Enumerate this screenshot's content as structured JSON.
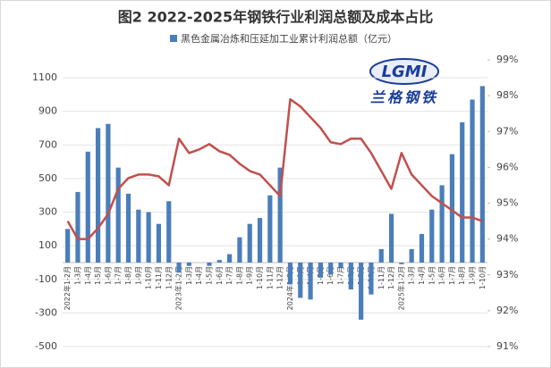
{
  "chart_data": {
    "type": "bar_line",
    "title": "图2 2022-2025年钢铁行业利润总额及成本占比",
    "logo": {
      "mark": "LGMI",
      "name": "兰格钢铁"
    },
    "categories": [
      "2022年1-2月",
      "1-3月",
      "1-4月",
      "1-5月",
      "1-6月",
      "1-7月",
      "1-8月",
      "1-9月",
      "1-10月",
      "1-11月",
      "1-12月",
      "2023年1-2月",
      "1-3月",
      "1-4月",
      "1-5月",
      "1-6月",
      "1-7月",
      "1-8月",
      "1-9月",
      "1-10月",
      "1-11月",
      "1-12月",
      "2024年1-2月",
      "1-3月",
      "1-4月",
      "1-5月",
      "1-6月",
      "1-7月",
      "1-8月",
      "1-9月",
      "1-10月",
      "1-11月",
      "1-12月",
      "2025年1-2月",
      "1-3月",
      "1-4月",
      "1-5月",
      "1-6月",
      "1-7月",
      "1-8月",
      "1-9月",
      "1-10月"
    ],
    "series": [
      {
        "name": "黑色金属冶炼和压延加工业累计利润总额（亿元）",
        "color": "#4a7ebb",
        "values": [
          200,
          420,
          660,
          800,
          825,
          565,
          410,
          315,
          300,
          230,
          365,
          -60,
          -20,
          0,
          -20,
          15,
          50,
          150,
          230,
          265,
          400,
          565,
          -130,
          -210,
          -220,
          -90,
          -70,
          -30,
          -160,
          -340,
          -190,
          80,
          290,
          -10,
          80,
          170,
          315,
          460,
          645,
          835,
          970,
          1050
        ]
      },
      {
        "color": "#c0504d",
        "axis": "y2",
        "values": [
          94.5,
          94.0,
          94.0,
          94.3,
          94.7,
          95.4,
          95.7,
          95.8,
          95.8,
          95.75,
          95.5,
          96.8,
          96.4,
          96.5,
          96.65,
          96.45,
          96.35,
          96.1,
          95.9,
          95.8,
          95.5,
          95.2,
          97.9,
          97.7,
          97.4,
          97.1,
          96.7,
          96.65,
          96.8,
          96.8,
          96.4,
          95.9,
          95.4,
          96.4,
          95.8,
          95.5,
          95.2,
          95.0,
          94.8,
          94.6,
          94.6,
          94.5
        ]
      }
    ],
    "ylim": [
      -500,
      1100
    ],
    "yticks": [
      -500,
      -300,
      -100,
      100,
      300,
      500,
      700,
      900,
      1100
    ],
    "y2lim": [
      91,
      99
    ],
    "y2ticks": [
      {
        "value": 91,
        "label": "91%"
      },
      {
        "value": 92,
        "label": "92%"
      },
      {
        "value": 93,
        "label": "93%"
      },
      {
        "value": 94,
        "label": "94%"
      },
      {
        "value": 95,
        "label": "95%"
      },
      {
        "value": 96,
        "label": "96%"
      },
      {
        "value": 97,
        "label": "97%"
      },
      {
        "value": 98,
        "label": "98%"
      },
      {
        "value": 99,
        "label": "99%"
      }
    ],
    "grid": true,
    "legend": "top"
  }
}
